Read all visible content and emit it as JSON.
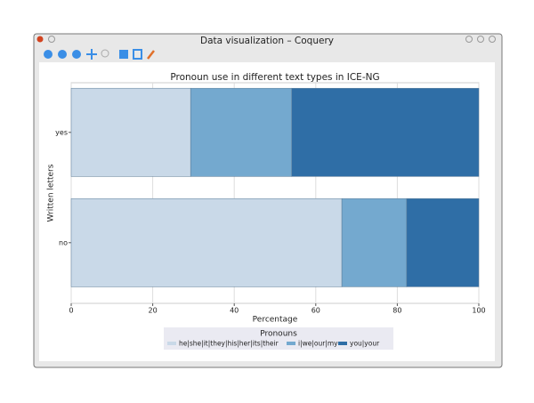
{
  "window_title": "Data visualization – Coquery",
  "chart_data": {
    "type": "bar",
    "orientation": "horizontal",
    "stacked": true,
    "title": "Pronoun use in different text types in ICE-NG",
    "xlabel": "Percentage",
    "ylabel": "Written letters",
    "categories": [
      "yes",
      "no"
    ],
    "series": [
      {
        "name": "he|she|it|they|his|her|its|their",
        "color": "#c9d9e8",
        "values": [
          29.3,
          66.4
        ]
      },
      {
        "name": "i|we|our|my",
        "color": "#74a9cf",
        "values": [
          24.8,
          15.9
        ]
      },
      {
        "name": "you|your",
        "color": "#2f6ea6",
        "values": [
          45.9,
          17.7
        ]
      }
    ],
    "xlim": [
      0,
      100
    ],
    "xticks": [
      0,
      20,
      40,
      60,
      80,
      100
    ],
    "grid": true,
    "legend": {
      "title": "Pronouns",
      "position": "bottom"
    }
  }
}
